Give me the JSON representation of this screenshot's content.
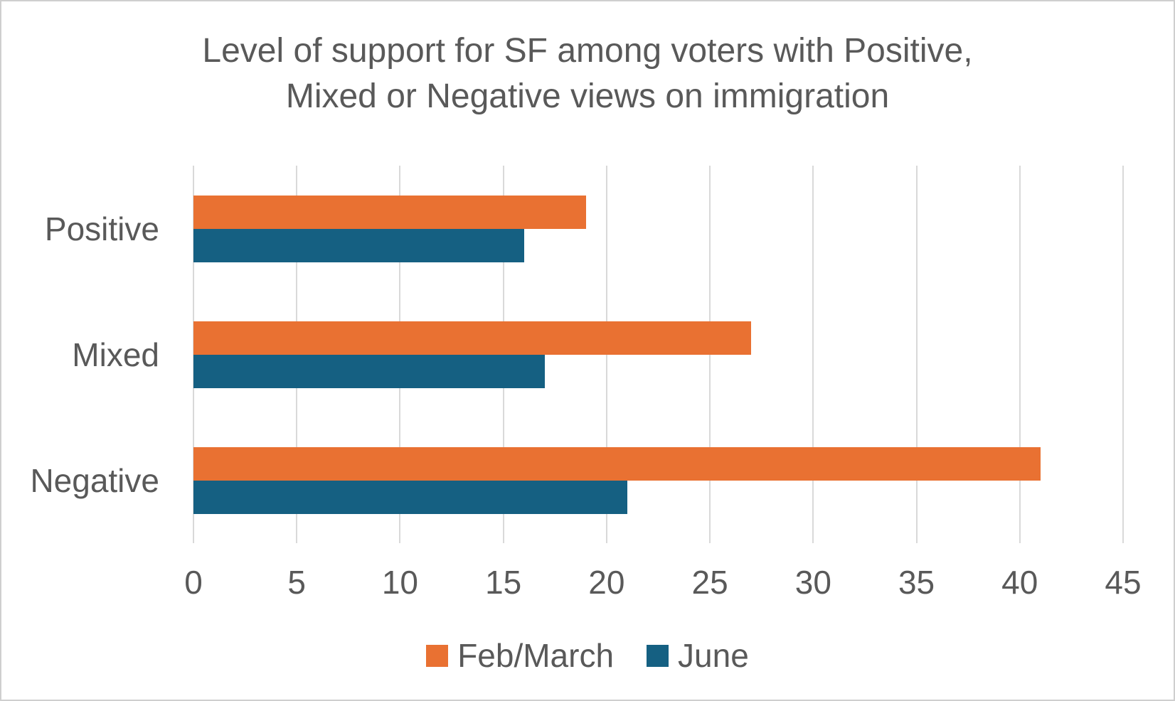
{
  "chart_data": {
    "type": "bar",
    "orientation": "horizontal",
    "title": "Level of support for SF among voters with Positive, Mixed or Negative views on immigration",
    "title_lines": [
      "Level of support for SF among voters with Positive,",
      "Mixed or Negative views on immigration"
    ],
    "categories": [
      "Positive",
      "Mixed",
      "Negative"
    ],
    "series": [
      {
        "name": "Feb/March",
        "color": "#E97132",
        "values": [
          19,
          27,
          41
        ]
      },
      {
        "name": "June",
        "color": "#156082",
        "values": [
          16,
          17,
          21
        ]
      }
    ],
    "xlabel": "",
    "ylabel": "",
    "x_ticks": [
      0,
      5,
      10,
      15,
      20,
      25,
      30,
      35,
      40,
      45
    ],
    "xlim": [
      0,
      45
    ],
    "grid": "vertical-gridlines",
    "legend_position": "bottom-center"
  },
  "colors": {
    "text": "#595959",
    "gridline": "#D9D9D9",
    "background": "#FFFFFF",
    "border": "#CFCFCF",
    "series_feb_march": "#E97132",
    "series_june": "#156082"
  }
}
